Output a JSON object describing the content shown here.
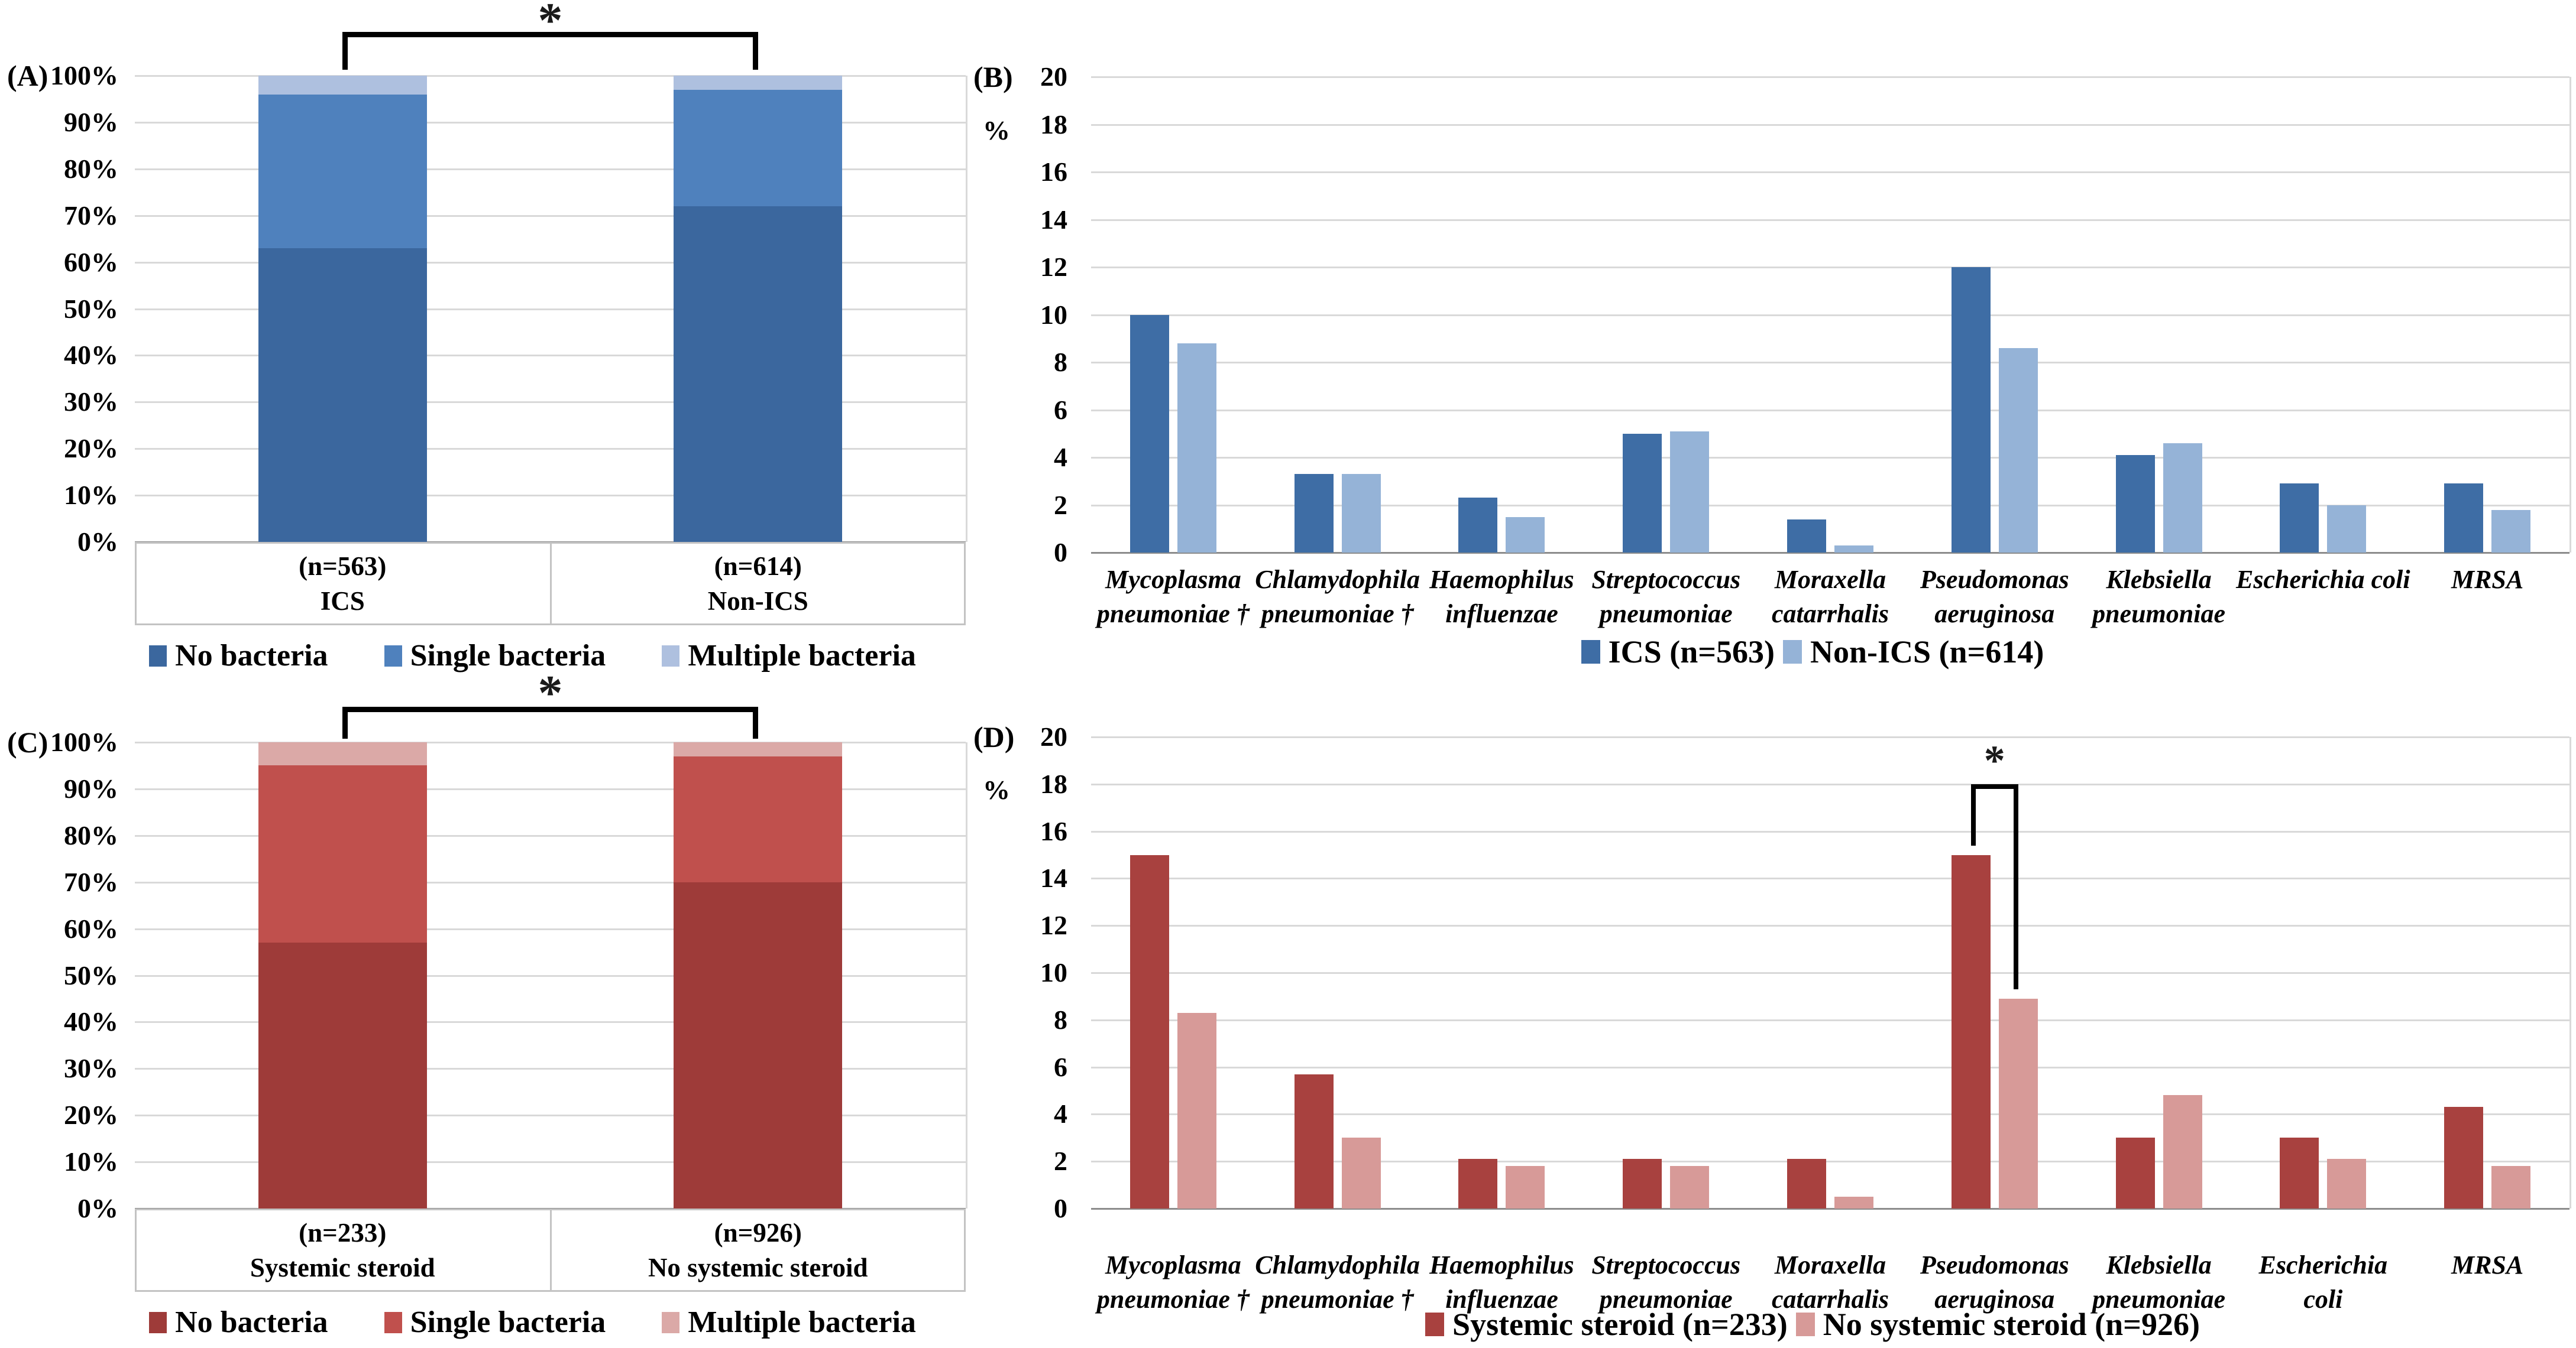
{
  "chart_data": [
    {
      "id": "A",
      "label": "(A)",
      "type": "stacked_bar_100",
      "ylim": [
        0,
        100
      ],
      "yticks": [
        "100%",
        "90%",
        "80%",
        "70%",
        "60%",
        "50%",
        "40%",
        "30%",
        "20%",
        "10%",
        "0%"
      ],
      "grid": true,
      "categories": [
        {
          "count": "(n=563)",
          "name": "ICS"
        },
        {
          "count": "(n=614)",
          "name": "Non-ICS"
        }
      ],
      "series": [
        {
          "name": "No bacteria",
          "color": "#3B679E",
          "values": [
            63,
            72
          ]
        },
        {
          "name": "Single bacteria",
          "color": "#4F81BD",
          "values": [
            33,
            25
          ]
        },
        {
          "name": "Multiple bacteria",
          "color": "#AEC0DF",
          "values": [
            4,
            3
          ]
        }
      ],
      "significance": {
        "label": "*",
        "between": [
          "ICS",
          "Non-ICS"
        ]
      }
    },
    {
      "id": "B",
      "label": "(B)",
      "type": "grouped_bar",
      "unit": "%",
      "ylim": [
        0,
        20
      ],
      "yticks": [
        "20",
        "18",
        "16",
        "14",
        "12",
        "10",
        "8",
        "6",
        "4",
        "2",
        "0"
      ],
      "grid": true,
      "categories": [
        [
          "Mycoplasma",
          "pneumoniae †"
        ],
        [
          "Chlamydophila",
          "pneumoniae †"
        ],
        [
          "Haemophilus",
          "influenzae"
        ],
        [
          "Streptococcus",
          "pneumoniae"
        ],
        [
          "Moraxella",
          "catarrhalis"
        ],
        [
          "Pseudomonas",
          "aeruginosa"
        ],
        [
          "Klebsiella",
          "pneumoniae"
        ],
        [
          "Escherichia coli"
        ],
        [
          "MRSA"
        ]
      ],
      "series": [
        {
          "name": "ICS (n=563)",
          "color": "#3E6DA5",
          "values": [
            10.0,
            3.3,
            2.3,
            5.0,
            1.4,
            12.0,
            4.1,
            2.9,
            2.9
          ]
        },
        {
          "name": "Non-ICS (n=614)",
          "color": "#95B3D7",
          "values": [
            8.8,
            3.3,
            1.5,
            5.1,
            0.3,
            8.6,
            4.6,
            2.0,
            1.8
          ]
        }
      ]
    },
    {
      "id": "C",
      "label": "(C)",
      "type": "stacked_bar_100",
      "ylim": [
        0,
        100
      ],
      "yticks": [
        "100%",
        "90%",
        "80%",
        "70%",
        "60%",
        "50%",
        "40%",
        "30%",
        "20%",
        "10%",
        "0%"
      ],
      "grid": true,
      "categories": [
        {
          "count": "(n=233)",
          "name": "Systemic steroid"
        },
        {
          "count": "(n=926)",
          "name": "No systemic steroid"
        }
      ],
      "series": [
        {
          "name": "No bacteria",
          "color": "#9E3B39",
          "values": [
            57,
            70
          ]
        },
        {
          "name": "Single bacteria",
          "color": "#C0504D",
          "values": [
            38,
            27
          ]
        },
        {
          "name": "Multiple bacteria",
          "color": "#DBA9A7",
          "values": [
            5,
            3
          ]
        }
      ],
      "significance": {
        "label": "*",
        "between": [
          "Systemic steroid",
          "No systemic steroid"
        ]
      }
    },
    {
      "id": "D",
      "label": "(D)",
      "type": "grouped_bar",
      "unit": "%",
      "ylim": [
        0,
        20
      ],
      "yticks": [
        "20",
        "18",
        "16",
        "14",
        "12",
        "10",
        "8",
        "6",
        "4",
        "2",
        "0"
      ],
      "grid": true,
      "categories": [
        [
          "Mycoplasma",
          "pneumoniae †"
        ],
        [
          "Chlamydophila",
          "pneumoniae †"
        ],
        [
          "Haemophilus",
          "influenzae"
        ],
        [
          "Streptococcus",
          "pneumoniae"
        ],
        [
          "Moraxella",
          "catarrhalis"
        ],
        [
          "Pseudomonas",
          "aeruginosa"
        ],
        [
          "Klebsiella",
          "pneumoniae"
        ],
        [
          "Escherichia",
          "coli"
        ],
        [
          "MRSA"
        ]
      ],
      "series": [
        {
          "name": "Systemic steroid (n=233)",
          "color": "#A8413F",
          "values": [
            15.0,
            5.7,
            2.1,
            2.1,
            2.1,
            15.0,
            3.0,
            3.0,
            4.3
          ]
        },
        {
          "name": "No systemic steroid (n=926)",
          "color": "#D79A98",
          "values": [
            8.3,
            3.0,
            1.8,
            1.8,
            0.5,
            8.9,
            4.8,
            2.1,
            1.8
          ]
        }
      ],
      "significance": {
        "label": "*",
        "category_index": 5,
        "bracket_top": 18,
        "drop_to": [
          15.4,
          9.3
        ]
      }
    }
  ]
}
